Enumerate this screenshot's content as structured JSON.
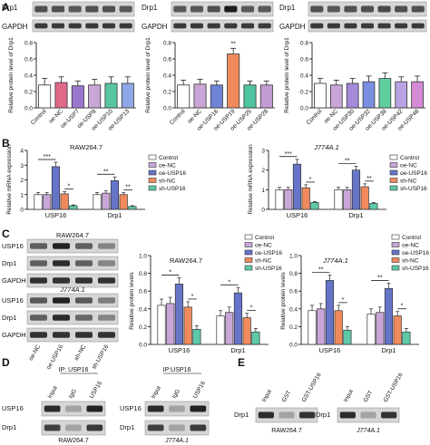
{
  "panel_letters": [
    "A",
    "B",
    "C",
    "D",
    "E"
  ],
  "colors": {
    "control": "#ffffff",
    "oe_nc": "#c9a6d8",
    "oe_usp16": "#6675c8",
    "sh_nc": "#f08a5d",
    "sh_usp16": "#5dc9a8",
    "oe_usp7": "#e06a8a",
    "oe_usp8": "#9a77cf",
    "oe_usp10": "#59c6a2",
    "oe_usp13": "#8ea7e6",
    "oe_usp19": "#6f83d6",
    "oe_usp25": "#4fc4a0",
    "oe_usp28": "#c39bd3",
    "oe_usp30": "#a58ad9",
    "oe_usp32": "#7b8fe0",
    "oe_usp38": "#5fcf9e",
    "oe_usp42": "#b9a3e2",
    "oe_usp48": "#d58ad6"
  },
  "panel_a": {
    "blot_labels": [
      "Drp1",
      "GAPDH"
    ],
    "ylabel": "Relative protein level of Drp1",
    "charts": [
      {
        "type": "bar",
        "categories": [
          "Control",
          "oe-NC",
          "oe-USP7",
          "oe-USP8",
          "oe-USP10",
          "oe-USP13"
        ],
        "values": [
          0.28,
          0.31,
          0.27,
          0.28,
          0.3,
          0.3
        ],
        "errors": [
          0.08,
          0.07,
          0.06,
          0.07,
          0.08,
          0.08
        ],
        "color_keys": [
          "control",
          "oe_usp7",
          "oe_usp8",
          "oe_nc",
          "oe_usp10",
          "oe_usp13"
        ],
        "ylim": [
          0,
          0.8
        ],
        "yticks": [
          "0.0",
          "0.2",
          "0.4",
          "0.6",
          "0.8"
        ],
        "sig": []
      },
      {
        "type": "bar",
        "categories": [
          "Control",
          "oe-NC",
          "oe-USP16",
          "oe-USP19",
          "oe-USP25",
          "oe-USP28"
        ],
        "values": [
          0.28,
          0.29,
          0.28,
          0.66,
          0.28,
          0.28
        ],
        "errors": [
          0.06,
          0.06,
          0.05,
          0.07,
          0.05,
          0.05
        ],
        "color_keys": [
          "control",
          "oe_nc",
          "oe_usp19",
          "sh_nc",
          "oe_usp25",
          "oe_usp28"
        ],
        "ylim": [
          0,
          0.8
        ],
        "yticks": [
          "0.0",
          "0.2",
          "0.4",
          "0.6",
          "0.8"
        ],
        "sig": [
          {
            "index": 3,
            "label": "**"
          }
        ]
      },
      {
        "type": "bar",
        "categories": [
          "Control",
          "oe-NC",
          "oe-USP30",
          "oe-USP32",
          "oe-USP38",
          "oe-USP42",
          "oe-USP48"
        ],
        "values": [
          0.3,
          0.28,
          0.3,
          0.32,
          0.36,
          0.32,
          0.32
        ],
        "errors": [
          0.06,
          0.06,
          0.06,
          0.07,
          0.07,
          0.06,
          0.07
        ],
        "color_keys": [
          "control",
          "oe_nc",
          "oe_usp30",
          "oe_usp32",
          "oe_usp38",
          "oe_usp42",
          "oe_usp48"
        ],
        "ylim": [
          0,
          0.8
        ],
        "yticks": [
          "0.0",
          "0.2",
          "0.4",
          "0.6",
          "0.8"
        ],
        "sig": []
      }
    ]
  },
  "legend": [
    "Control",
    "oe-NC",
    "oe-USP16",
    "sh-NC",
    "sh-USP16"
  ],
  "legend_keys": [
    "control",
    "oe_nc",
    "oe_usp16",
    "sh_nc",
    "sh_usp16"
  ],
  "panel_b": {
    "ylabel": "Relative mRNA expression",
    "charts": [
      {
        "type": "bar",
        "title": "RAW264.7",
        "groups": [
          "USP16",
          "Drp1"
        ],
        "series_values": [
          [
            1.0,
            1.0,
            2.9,
            1.05,
            0.25
          ],
          [
            1.0,
            1.1,
            1.95,
            1.0,
            0.2
          ]
        ],
        "series_errors": [
          [
            0.15,
            0.15,
            0.3,
            0.15,
            0.05
          ],
          [
            0.15,
            0.15,
            0.25,
            0.15,
            0.05
          ]
        ],
        "ylim": [
          0,
          4
        ],
        "yticks": [
          "0",
          "1",
          "2",
          "3",
          "4"
        ],
        "sig": [
          [
            {
              "pair": [
                0,
                2
              ],
              "label": "***"
            },
            {
              "pair": [
                3,
                4
              ],
              "label": "*"
            }
          ],
          [
            {
              "pair": [
                0,
                2
              ],
              "label": "**"
            },
            {
              "pair": [
                3,
                4
              ],
              "label": "**"
            }
          ]
        ]
      },
      {
        "type": "bar",
        "title": "J774A.1",
        "groups": [
          "USP16",
          "Drp1"
        ],
        "series_values": [
          [
            1.0,
            1.0,
            2.3,
            1.1,
            0.35
          ],
          [
            1.0,
            1.0,
            2.0,
            1.15,
            0.3
          ]
        ],
        "series_errors": [
          [
            0.12,
            0.12,
            0.25,
            0.15,
            0.05
          ],
          [
            0.12,
            0.12,
            0.2,
            0.15,
            0.05
          ]
        ],
        "ylim": [
          0,
          3
        ],
        "yticks": [
          "0",
          "1",
          "2",
          "3"
        ],
        "sig": [
          [
            {
              "pair": [
                0,
                2
              ],
              "label": "***"
            },
            {
              "pair": [
                3,
                4
              ],
              "label": "*"
            }
          ],
          [
            {
              "pair": [
                0,
                2
              ],
              "label": "**"
            },
            {
              "pair": [
                3,
                4
              ],
              "label": "**"
            }
          ]
        ]
      }
    ]
  },
  "panel_c": {
    "top_label": "RAW264.7",
    "mid_label": "J774A.1",
    "blot_labels": [
      "USP16",
      "Drp1",
      "GAPDH",
      "USP16",
      "Drp1",
      "GAPDH"
    ],
    "lane_labels": [
      "oe-NC",
      "oe-USP16",
      "sh-NC",
      "sh-USP16"
    ],
    "ylabel": "Relative protein levels",
    "charts": [
      {
        "type": "bar",
        "title": "RAW264.7",
        "groups": [
          "USP16",
          "Drp1"
        ],
        "series_values": [
          [
            0.44,
            0.46,
            0.68,
            0.42,
            0.17
          ],
          [
            0.32,
            0.36,
            0.58,
            0.3,
            0.14
          ]
        ],
        "series_errors": [
          [
            0.07,
            0.07,
            0.07,
            0.06,
            0.04
          ],
          [
            0.06,
            0.06,
            0.06,
            0.05,
            0.04
          ]
        ],
        "ylim": [
          0,
          1.0
        ],
        "yticks": [
          "0.0",
          "0.2",
          "0.4",
          "0.6",
          "0.8",
          "1.0"
        ],
        "sig": [
          [
            {
              "pair": [
                0,
                2
              ],
              "label": "*"
            },
            {
              "pair": [
                3,
                4
              ],
              "label": "*"
            }
          ],
          [
            {
              "pair": [
                0,
                2
              ],
              "label": "*"
            },
            {
              "pair": [
                3,
                4
              ],
              "label": "*"
            }
          ]
        ]
      },
      {
        "type": "bar",
        "title": "J774A.1",
        "groups": [
          "USP16",
          "Drp1"
        ],
        "series_values": [
          [
            0.38,
            0.4,
            0.72,
            0.38,
            0.16
          ],
          [
            0.34,
            0.36,
            0.63,
            0.32,
            0.14
          ]
        ],
        "series_errors": [
          [
            0.06,
            0.06,
            0.06,
            0.06,
            0.04
          ],
          [
            0.06,
            0.06,
            0.06,
            0.05,
            0.04
          ]
        ],
        "ylim": [
          0,
          1.0
        ],
        "yticks": [
          "0.0",
          "0.2",
          "0.4",
          "0.6",
          "0.8",
          "1.0"
        ],
        "sig": [
          [
            {
              "pair": [
                0,
                2
              ],
              "label": "**"
            },
            {
              "pair": [
                3,
                4
              ],
              "label": "*"
            }
          ],
          [
            {
              "pair": [
                0,
                2
              ],
              "label": "**"
            },
            {
              "pair": [
                3,
                4
              ],
              "label": "*"
            }
          ]
        ]
      }
    ]
  },
  "panel_d": {
    "blots": [
      {
        "ip": "IP: USP16",
        "cell": "RAW264.7",
        "lanes": [
          "Input",
          "IgG",
          "USP16"
        ],
        "rows": [
          "USP16",
          "Drp1"
        ]
      },
      {
        "ip": "IP:USP16",
        "cell": "J774A.1",
        "lanes": [
          "Input",
          "IgG",
          "USP16"
        ],
        "rows": [
          "USP16",
          "Drp1"
        ]
      }
    ]
  },
  "panel_e": {
    "blots": [
      {
        "cell": "RAW264.7",
        "lanes": [
          "Input",
          "GST",
          "GST-USP16"
        ],
        "rows": [
          "Drp1"
        ]
      },
      {
        "cell": "J774A.1",
        "lanes": [
          "Input",
          "GST",
          "GST-USP16"
        ],
        "rows": [
          "Drp1"
        ]
      }
    ]
  },
  "chart_data": [
    {
      "type": "bar",
      "categories": [
        "Control",
        "oe-NC",
        "oe-USP7",
        "oe-USP8",
        "oe-USP10",
        "oe-USP13"
      ],
      "values": [
        0.28,
        0.31,
        0.27,
        0.28,
        0.3,
        0.3
      ],
      "ylabel": "Relative protein level of Drp1",
      "ylim": [
        0,
        0.8
      ]
    },
    {
      "type": "bar",
      "categories": [
        "Control",
        "oe-NC",
        "oe-USP16",
        "oe-USP19",
        "oe-USP25",
        "oe-USP28"
      ],
      "values": [
        0.28,
        0.29,
        0.28,
        0.66,
        0.28,
        0.28
      ],
      "ylabel": "Relative protein level of Drp1",
      "ylim": [
        0,
        0.8
      ]
    },
    {
      "type": "bar",
      "categories": [
        "Control",
        "oe-NC",
        "oe-USP30",
        "oe-USP32",
        "oe-USP38",
        "oe-USP42",
        "oe-USP48"
      ],
      "values": [
        0.3,
        0.28,
        0.3,
        0.32,
        0.36,
        0.32,
        0.32
      ],
      "ylabel": "Relative protein level of Drp1",
      "ylim": [
        0,
        0.8
      ]
    },
    {
      "type": "bar",
      "title": "RAW264.7",
      "categories": [
        "USP16",
        "Drp1"
      ],
      "series": [
        {
          "name": "Control",
          "values": [
            1.0,
            1.0
          ]
        },
        {
          "name": "oe-NC",
          "values": [
            1.0,
            1.1
          ]
        },
        {
          "name": "oe-USP16",
          "values": [
            2.9,
            1.95
          ]
        },
        {
          "name": "sh-NC",
          "values": [
            1.05,
            1.0
          ]
        },
        {
          "name": "sh-USP16",
          "values": [
            0.25,
            0.2
          ]
        }
      ],
      "ylabel": "Relative mRNA expression",
      "ylim": [
        0,
        4
      ]
    },
    {
      "type": "bar",
      "title": "J774A.1",
      "categories": [
        "USP16",
        "Drp1"
      ],
      "series": [
        {
          "name": "Control",
          "values": [
            1.0,
            1.0
          ]
        },
        {
          "name": "oe-NC",
          "values": [
            1.0,
            1.0
          ]
        },
        {
          "name": "oe-USP16",
          "values": [
            2.3,
            2.0
          ]
        },
        {
          "name": "sh-NC",
          "values": [
            1.1,
            1.15
          ]
        },
        {
          "name": "sh-USP16",
          "values": [
            0.35,
            0.3
          ]
        }
      ],
      "ylabel": "Relative mRNA expression",
      "ylim": [
        0,
        3
      ]
    },
    {
      "type": "bar",
      "title": "RAW264.7",
      "categories": [
        "USP16",
        "Drp1"
      ],
      "series": [
        {
          "name": "Control",
          "values": [
            0.44,
            0.32
          ]
        },
        {
          "name": "oe-NC",
          "values": [
            0.46,
            0.36
          ]
        },
        {
          "name": "oe-USP16",
          "values": [
            0.68,
            0.58
          ]
        },
        {
          "name": "sh-NC",
          "values": [
            0.42,
            0.3
          ]
        },
        {
          "name": "sh-USP16",
          "values": [
            0.17,
            0.14
          ]
        }
      ],
      "ylabel": "Relative protein levels",
      "ylim": [
        0,
        1.0
      ]
    },
    {
      "type": "bar",
      "title": "J774A.1",
      "categories": [
        "USP16",
        "Drp1"
      ],
      "series": [
        {
          "name": "Control",
          "values": [
            0.38,
            0.34
          ]
        },
        {
          "name": "oe-NC",
          "values": [
            0.4,
            0.36
          ]
        },
        {
          "name": "oe-USP16",
          "values": [
            0.72,
            0.63
          ]
        },
        {
          "name": "sh-NC",
          "values": [
            0.38,
            0.32
          ]
        },
        {
          "name": "sh-USP16",
          "values": [
            0.16,
            0.14
          ]
        }
      ],
      "ylabel": "Relative protein levels",
      "ylim": [
        0,
        1.0
      ]
    }
  ]
}
